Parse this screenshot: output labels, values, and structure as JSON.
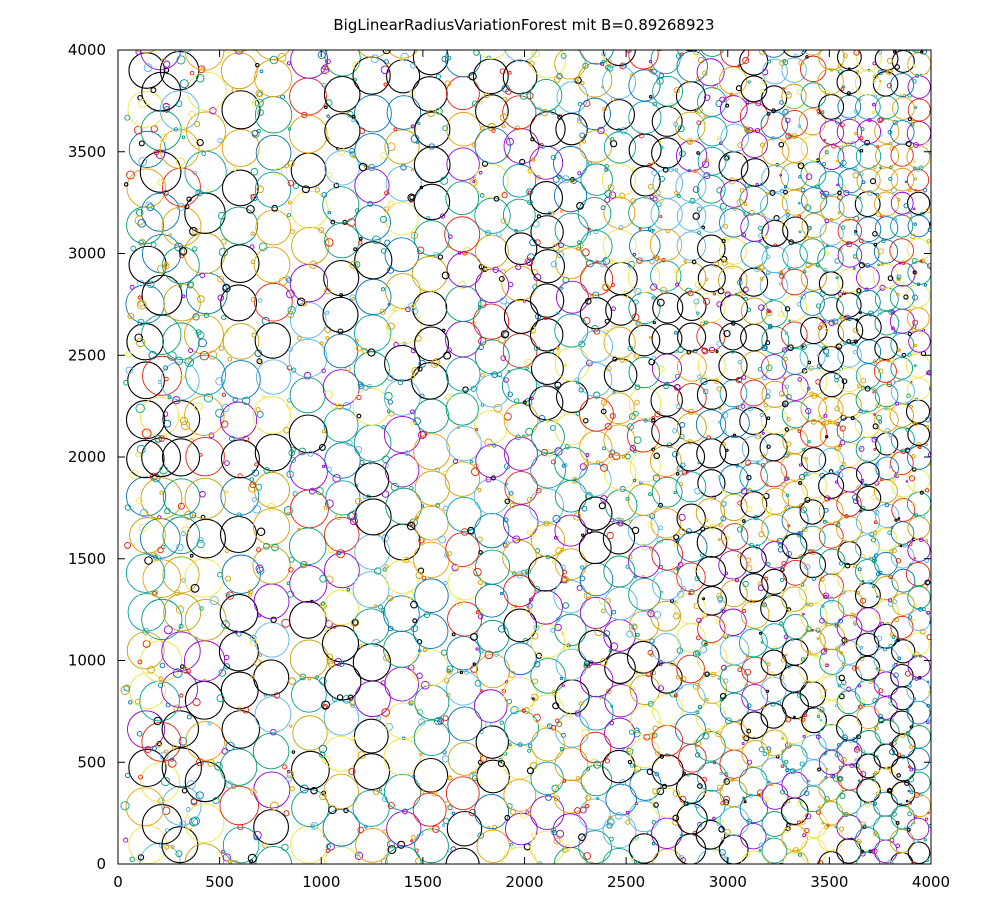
{
  "chart_data": {
    "type": "scatter",
    "title": "BigLinearRadiusVariationForest mit B=0.89268923",
    "xlabel": "",
    "ylabel": "",
    "xlim": [
      0,
      4000
    ],
    "ylim": [
      0,
      4000
    ],
    "x_ticks": [
      0,
      500,
      1000,
      1500,
      2000,
      2500,
      3000,
      3500,
      4000
    ],
    "y_ticks": [
      0,
      500,
      1000,
      1500,
      2000,
      2500,
      3000,
      3500,
      4000
    ],
    "x_tick_labels": [
      "0",
      "500",
      "1000",
      "1500",
      "2000",
      "2500",
      "3000",
      "3500",
      "4000"
    ],
    "y_tick_labels": [
      "0",
      "500",
      "1000",
      "1500",
      "2000",
      "2500",
      "3000",
      "3500",
      "4000"
    ],
    "grid": false,
    "legend": "none",
    "marker": "hollow-circle",
    "radius_profile": {
      "x": [
        0,
        500,
        1000,
        1500,
        2000,
        2500,
        3000,
        3500,
        4000
      ],
      "max_radius": [
        100,
        95,
        90,
        88,
        85,
        80,
        72,
        65,
        58
      ]
    },
    "palette": [
      "#000000",
      "#9400d3",
      "#009e73",
      "#56b4e9",
      "#e69f00",
      "#f0e442",
      "#0072b2",
      "#e51e10",
      "#00a0a0",
      "#c8a000"
    ],
    "columns": [
      {
        "x": 140,
        "r": 95
      },
      {
        "x": 210,
        "r": 100
      },
      {
        "x": 310,
        "r": 95
      },
      {
        "x": 430,
        "r": 100
      },
      {
        "x": 600,
        "r": 95
      },
      {
        "x": 760,
        "r": 92
      },
      {
        "x": 940,
        "r": 92
      },
      {
        "x": 1100,
        "r": 90
      },
      {
        "x": 1250,
        "r": 90
      },
      {
        "x": 1400,
        "r": 88
      },
      {
        "x": 1540,
        "r": 88
      },
      {
        "x": 1700,
        "r": 86
      },
      {
        "x": 1840,
        "r": 86
      },
      {
        "x": 1980,
        "r": 84
      },
      {
        "x": 2110,
        "r": 84
      },
      {
        "x": 2230,
        "r": 82
      },
      {
        "x": 2350,
        "r": 82
      },
      {
        "x": 2470,
        "r": 80
      },
      {
        "x": 2590,
        "r": 78
      },
      {
        "x": 2700,
        "r": 76
      },
      {
        "x": 2820,
        "r": 74
      },
      {
        "x": 2920,
        "r": 72
      },
      {
        "x": 3030,
        "r": 70
      },
      {
        "x": 3130,
        "r": 68
      },
      {
        "x": 3230,
        "r": 66
      },
      {
        "x": 3330,
        "r": 65
      },
      {
        "x": 3420,
        "r": 64
      },
      {
        "x": 3510,
        "r": 62
      },
      {
        "x": 3600,
        "r": 61
      },
      {
        "x": 3690,
        "r": 60
      },
      {
        "x": 3780,
        "r": 59
      },
      {
        "x": 3860,
        "r": 58
      },
      {
        "x": 3940,
        "r": 57
      }
    ]
  }
}
